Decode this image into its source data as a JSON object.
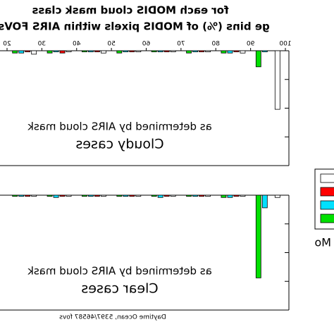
{
  "chart_data": [
    {
      "type": "bar",
      "title_lines": [
        "for each MODIS cloud mask class",
        "ge bins (%) of MODIS pixels within AIRS FOVs"
      ],
      "annotation": "as determined by AIRS cloud mask",
      "label": "Cloudy cases",
      "x": [
        25,
        35,
        45,
        55,
        65,
        75,
        85,
        95
      ],
      "xlim": [
        20,
        100
      ],
      "xticks": [
        20,
        30,
        40,
        50,
        60,
        70,
        80,
        90,
        100
      ],
      "ylim": [
        0,
        100
      ],
      "series": [
        {
          "color": "#00e000",
          "values": [
            2,
            2,
            1,
            2,
            1,
            2,
            2,
            14
          ]
        },
        {
          "color": "#00e0ff",
          "values": [
            2,
            1,
            1,
            1,
            1,
            1,
            2,
            1
          ]
        },
        {
          "color": "#ff0000",
          "values": [
            1,
            2,
            1,
            1,
            1,
            1,
            1,
            0
          ]
        },
        {
          "color": "#ffffff",
          "values": [
            3,
            1,
            2,
            1,
            1,
            1,
            2,
            51
          ]
        }
      ]
    },
    {
      "type": "bar",
      "annotation": "as determined by AIRS cloud mask",
      "label": "Clear cases",
      "note": "Daytime Ocean, 5397/46587 fovs",
      "legend_title": "Mo",
      "x": [
        25,
        35,
        45,
        55,
        65,
        75,
        85,
        95
      ],
      "xlim": [
        20,
        100
      ],
      "ylim": [
        0,
        100
      ],
      "series": [
        {
          "color": "#00e000",
          "values": [
            1,
            1,
            1,
            1,
            1,
            1,
            2,
            72
          ]
        },
        {
          "color": "#00e0ff",
          "values": [
            1,
            2,
            1,
            1,
            2,
            1,
            2,
            11
          ]
        },
        {
          "color": "#ff0000",
          "values": [
            1,
            1,
            1,
            1,
            1,
            1,
            1,
            0
          ]
        },
        {
          "color": "#ffffff",
          "values": [
            1,
            1,
            1,
            1,
            1,
            1,
            1,
            2
          ]
        }
      ]
    }
  ]
}
